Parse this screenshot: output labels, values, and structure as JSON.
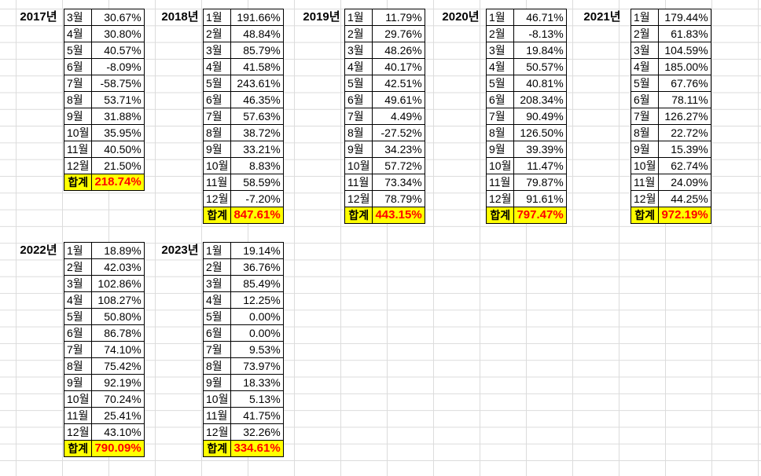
{
  "sheet": {
    "total_label": "합계",
    "years": [
      {
        "year": "2017년",
        "rows": [
          {
            "month": "3월",
            "value": "30.67%"
          },
          {
            "month": "4월",
            "value": "30.80%"
          },
          {
            "month": "5월",
            "value": "40.57%"
          },
          {
            "month": "6월",
            "value": "-8.09%"
          },
          {
            "month": "7월",
            "value": "-58.75%"
          },
          {
            "month": "8월",
            "value": "53.71%"
          },
          {
            "month": "9월",
            "value": "31.88%"
          },
          {
            "month": "10월",
            "value": "35.95%"
          },
          {
            "month": "11월",
            "value": "40.50%"
          },
          {
            "month": "12월",
            "value": "21.50%"
          }
        ],
        "total": "218.74%"
      },
      {
        "year": "2018년",
        "rows": [
          {
            "month": "1월",
            "value": "191.66%"
          },
          {
            "month": "2월",
            "value": "48.84%"
          },
          {
            "month": "3월",
            "value": "85.79%"
          },
          {
            "month": "4월",
            "value": "41.58%"
          },
          {
            "month": "5월",
            "value": "243.61%"
          },
          {
            "month": "6월",
            "value": "46.35%"
          },
          {
            "month": "7월",
            "value": "57.63%"
          },
          {
            "month": "8월",
            "value": "38.72%"
          },
          {
            "month": "9월",
            "value": "33.21%"
          },
          {
            "month": "10월",
            "value": "8.83%"
          },
          {
            "month": "11월",
            "value": "58.59%"
          },
          {
            "month": "12월",
            "value": "-7.20%"
          }
        ],
        "total": "847.61%"
      },
      {
        "year": "2019년",
        "rows": [
          {
            "month": "1월",
            "value": "11.79%"
          },
          {
            "month": "2월",
            "value": "29.76%"
          },
          {
            "month": "3월",
            "value": "48.26%"
          },
          {
            "month": "4월",
            "value": "40.17%"
          },
          {
            "month": "5월",
            "value": "42.51%"
          },
          {
            "month": "6월",
            "value": "49.61%"
          },
          {
            "month": "7월",
            "value": "4.49%"
          },
          {
            "month": "8월",
            "value": "-27.52%"
          },
          {
            "month": "9월",
            "value": "34.23%"
          },
          {
            "month": "10월",
            "value": "57.72%"
          },
          {
            "month": "11월",
            "value": "73.34%"
          },
          {
            "month": "12월",
            "value": "78.79%"
          }
        ],
        "total": "443.15%"
      },
      {
        "year": "2020년",
        "rows": [
          {
            "month": "1월",
            "value": "46.71%"
          },
          {
            "month": "2월",
            "value": "-8.13%"
          },
          {
            "month": "3월",
            "value": "19.84%"
          },
          {
            "month": "4월",
            "value": "50.57%"
          },
          {
            "month": "5월",
            "value": "40.81%"
          },
          {
            "month": "6월",
            "value": "208.34%"
          },
          {
            "month": "7월",
            "value": "90.49%"
          },
          {
            "month": "8월",
            "value": "126.50%"
          },
          {
            "month": "9월",
            "value": "39.39%"
          },
          {
            "month": "10월",
            "value": "11.47%"
          },
          {
            "month": "11월",
            "value": "79.87%"
          },
          {
            "month": "12월",
            "value": "91.61%"
          }
        ],
        "total": "797.47%"
      },
      {
        "year": "2021년",
        "rows": [
          {
            "month": "1월",
            "value": "179.44%"
          },
          {
            "month": "2월",
            "value": "61.83%"
          },
          {
            "month": "3월",
            "value": "104.59%"
          },
          {
            "month": "4월",
            "value": "185.00%"
          },
          {
            "month": "5월",
            "value": "67.76%"
          },
          {
            "month": "6월",
            "value": "78.11%"
          },
          {
            "month": "7월",
            "value": "126.27%"
          },
          {
            "month": "8월",
            "value": "22.72%"
          },
          {
            "month": "9월",
            "value": "15.39%"
          },
          {
            "month": "10월",
            "value": "62.74%"
          },
          {
            "month": "11월",
            "value": "24.09%"
          },
          {
            "month": "12월",
            "value": "44.25%"
          }
        ],
        "total": "972.19%"
      },
      {
        "year": "2022년",
        "rows": [
          {
            "month": "1월",
            "value": "18.89%"
          },
          {
            "month": "2월",
            "value": "42.03%"
          },
          {
            "month": "3월",
            "value": "102.86%"
          },
          {
            "month": "4월",
            "value": "108.27%"
          },
          {
            "month": "5월",
            "value": "50.80%"
          },
          {
            "month": "6월",
            "value": "86.78%"
          },
          {
            "month": "7월",
            "value": "74.10%"
          },
          {
            "month": "8월",
            "value": "75.42%"
          },
          {
            "month": "9월",
            "value": "92.19%"
          },
          {
            "month": "10월",
            "value": "70.24%"
          },
          {
            "month": "11월",
            "value": "25.41%"
          },
          {
            "month": "12월",
            "value": "43.10%"
          }
        ],
        "total": "790.09%"
      },
      {
        "year": "2023년",
        "rows": [
          {
            "month": "1월",
            "value": "19.14%"
          },
          {
            "month": "2월",
            "value": "36.76%"
          },
          {
            "month": "3월",
            "value": "85.49%"
          },
          {
            "month": "4월",
            "value": "12.25%"
          },
          {
            "month": "5월",
            "value": "0.00%"
          },
          {
            "month": "6월",
            "value": "0.00%"
          },
          {
            "month": "7월",
            "value": "9.53%"
          },
          {
            "month": "8월",
            "value": "73.97%"
          },
          {
            "month": "9월",
            "value": "18.33%"
          },
          {
            "month": "10월",
            "value": "5.13%"
          },
          {
            "month": "11월",
            "value": "41.75%"
          },
          {
            "month": "12월",
            "value": "32.26%"
          }
        ],
        "total": "334.61%"
      }
    ]
  },
  "colors": {
    "total_fill": "#ffff00",
    "total_text": "#ff0000",
    "gridline": "#dcdcdc",
    "border": "#000000"
  }
}
